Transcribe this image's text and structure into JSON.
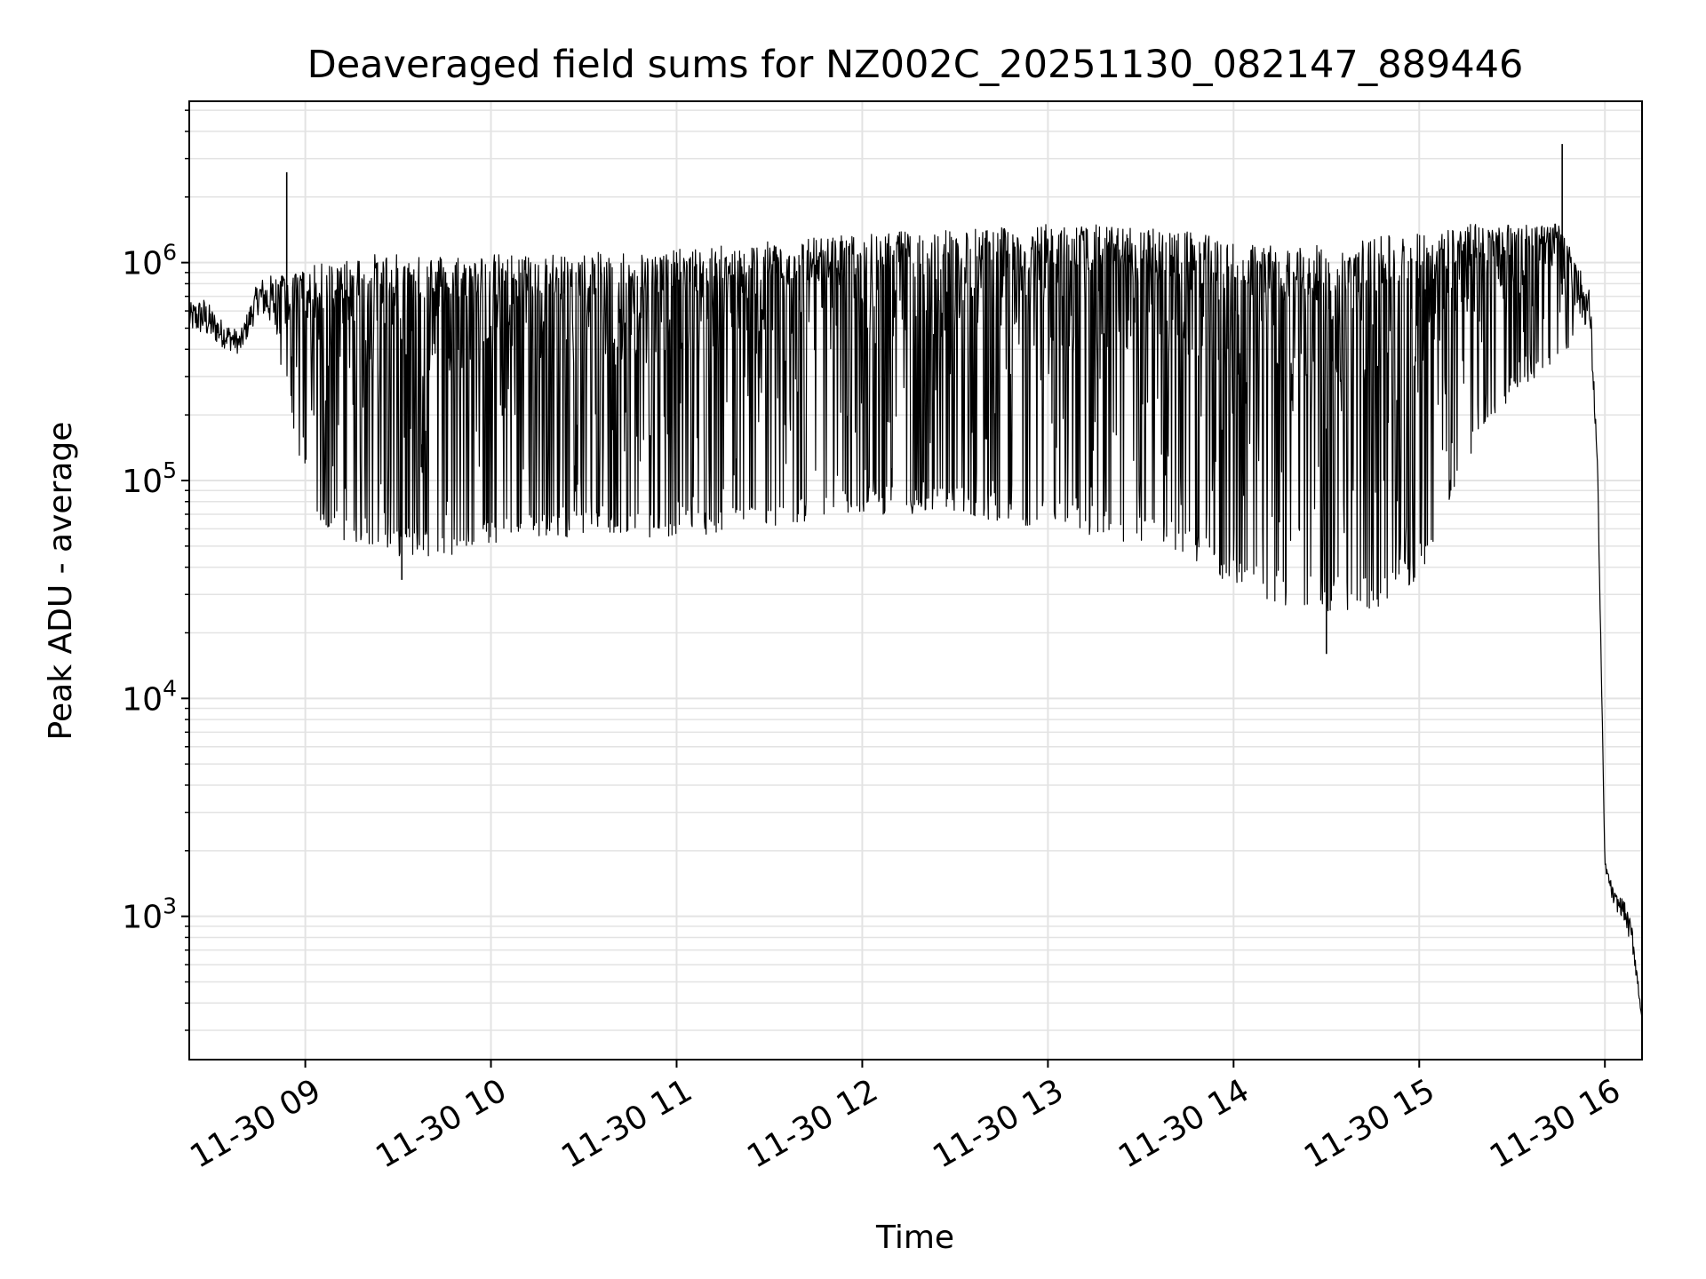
{
  "chart_data": {
    "type": "line",
    "title": "Deaveraged field sums for NZ002C_20251130_082147_889446",
    "xlabel": "Time",
    "ylabel": "Peak ADU - average",
    "yscale": "log",
    "xlim": [
      8.375,
      16.2
    ],
    "ylim": [
      220,
      5500000
    ],
    "grid": true,
    "line_color": "#000000",
    "grid_color": "#e3e3e3",
    "x_ticks": [
      {
        "value": 9,
        "label": "11-30 09"
      },
      {
        "value": 10,
        "label": "11-30 10"
      },
      {
        "value": 11,
        "label": "11-30 11"
      },
      {
        "value": 12,
        "label": "11-30 12"
      },
      {
        "value": 13,
        "label": "11-30 13"
      },
      {
        "value": 14,
        "label": "11-30 14"
      },
      {
        "value": 15,
        "label": "11-30 15"
      },
      {
        "value": 16,
        "label": "11-30 16"
      }
    ],
    "y_ticks": [
      {
        "value": 1000,
        "base": "10",
        "exp": "3"
      },
      {
        "value": 10000,
        "base": "10",
        "exp": "4"
      },
      {
        "value": 100000,
        "base": "10",
        "exp": "5"
      },
      {
        "value": 1000000,
        "base": "10",
        "exp": "6"
      }
    ],
    "series": [
      {
        "name": "Deaveraged field sum",
        "x_unit": "hour of 2025-11-30",
        "sampled_at_hour": [
          8.375,
          8.45,
          8.55,
          8.65,
          8.75,
          8.85,
          8.9,
          9.0,
          9.1,
          9.3,
          9.5,
          9.75,
          10.0,
          10.25,
          10.5,
          10.75,
          11.0,
          11.25,
          11.5,
          11.75,
          12.0,
          12.25,
          12.5,
          12.75,
          13.0,
          13.25,
          13.5,
          13.75,
          14.0,
          14.25,
          14.5,
          14.75,
          15.0,
          15.25,
          15.5,
          15.75,
          15.85,
          15.92,
          15.96,
          16.0,
          16.05,
          16.1,
          16.15,
          16.2
        ],
        "upper_envelope": [
          650000,
          700000,
          550000,
          480000,
          850000,
          900000,
          850000,
          950000,
          1000000,
          1100000,
          1100000,
          1100000,
          1100000,
          1100000,
          1100000,
          1150000,
          1150000,
          1200000,
          1250000,
          1300000,
          1350000,
          1400000,
          1450000,
          1450000,
          1500000,
          1500000,
          1450000,
          1400000,
          1250000,
          1200000,
          1200000,
          1300000,
          1400000,
          1500000,
          1550000,
          1500000,
          1000000,
          750000,
          130000,
          1800,
          1300,
          1200,
          900,
          350
        ],
        "lower_envelope": [
          420000,
          380000,
          360000,
          340000,
          500000,
          350000,
          300000,
          70000,
          55000,
          50000,
          45000,
          45000,
          50000,
          55000,
          55000,
          55000,
          55000,
          55000,
          60000,
          65000,
          70000,
          70000,
          70000,
          65000,
          60000,
          55000,
          50000,
          45000,
          32000,
          27000,
          25000,
          25000,
          35000,
          120000,
          250000,
          350000,
          450000,
          400000,
          100000,
          1600,
          1000,
          900,
          600,
          320
        ],
        "notable_points": [
          {
            "x": 8.9,
            "y": 2600000,
            "note": "spike"
          },
          {
            "x": 9.52,
            "y": 35000,
            "note": "dip"
          },
          {
            "x": 14.5,
            "y": 16000,
            "note": "minimum dip"
          },
          {
            "x": 15.77,
            "y": 3500000,
            "note": "peak spike"
          },
          {
            "x": 16.2,
            "y": 350,
            "note": "end value"
          }
        ]
      }
    ]
  }
}
